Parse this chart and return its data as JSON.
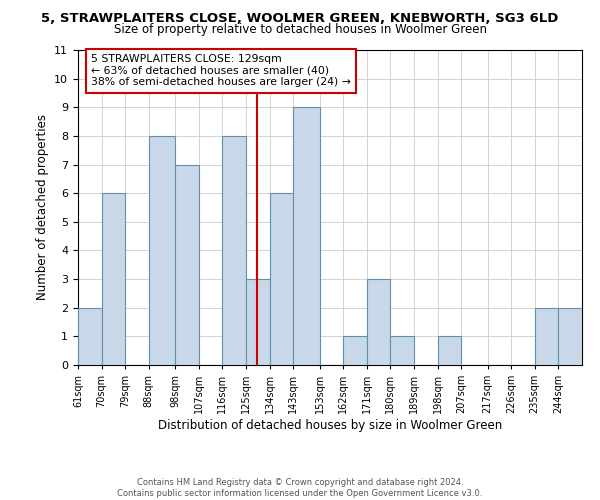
{
  "title": "5, STRAWPLAITERS CLOSE, WOOLMER GREEN, KNEBWORTH, SG3 6LD",
  "subtitle": "Size of property relative to detached houses in Woolmer Green",
  "xlabel": "Distribution of detached houses by size in Woolmer Green",
  "ylabel": "Number of detached properties",
  "bin_labels": [
    "61sqm",
    "70sqm",
    "79sqm",
    "88sqm",
    "98sqm",
    "107sqm",
    "116sqm",
    "125sqm",
    "134sqm",
    "143sqm",
    "153sqm",
    "162sqm",
    "171sqm",
    "180sqm",
    "189sqm",
    "198sqm",
    "207sqm",
    "217sqm",
    "226sqm",
    "235sqm",
    "244sqm"
  ],
  "bin_edges": [
    61,
    70,
    79,
    88,
    98,
    107,
    116,
    125,
    134,
    143,
    153,
    162,
    171,
    180,
    189,
    198,
    207,
    217,
    226,
    235,
    244
  ],
  "bar_heights": [
    2,
    6,
    0,
    8,
    7,
    0,
    8,
    3,
    6,
    9,
    0,
    1,
    3,
    1,
    0,
    1,
    0,
    0,
    0,
    2,
    2
  ],
  "bar_color": "#c8d8e8",
  "bar_edge_color": "#6090b0",
  "red_line_x": 129,
  "ylim": [
    0,
    11
  ],
  "yticks": [
    0,
    1,
    2,
    3,
    4,
    5,
    6,
    7,
    8,
    9,
    10,
    11
  ],
  "annotation_title": "5 STRAWPLAITERS CLOSE: 129sqm",
  "annotation_line1": "← 63% of detached houses are smaller (40)",
  "annotation_line2": "38% of semi-detached houses are larger (24) →",
  "annotation_box_color": "#ffffff",
  "annotation_box_edge_color": "#cc0000",
  "footer1": "Contains HM Land Registry data © Crown copyright and database right 2024.",
  "footer2": "Contains public sector information licensed under the Open Government Licence v3.0.",
  "background_color": "#ffffff",
  "grid_color": "#cccccc"
}
